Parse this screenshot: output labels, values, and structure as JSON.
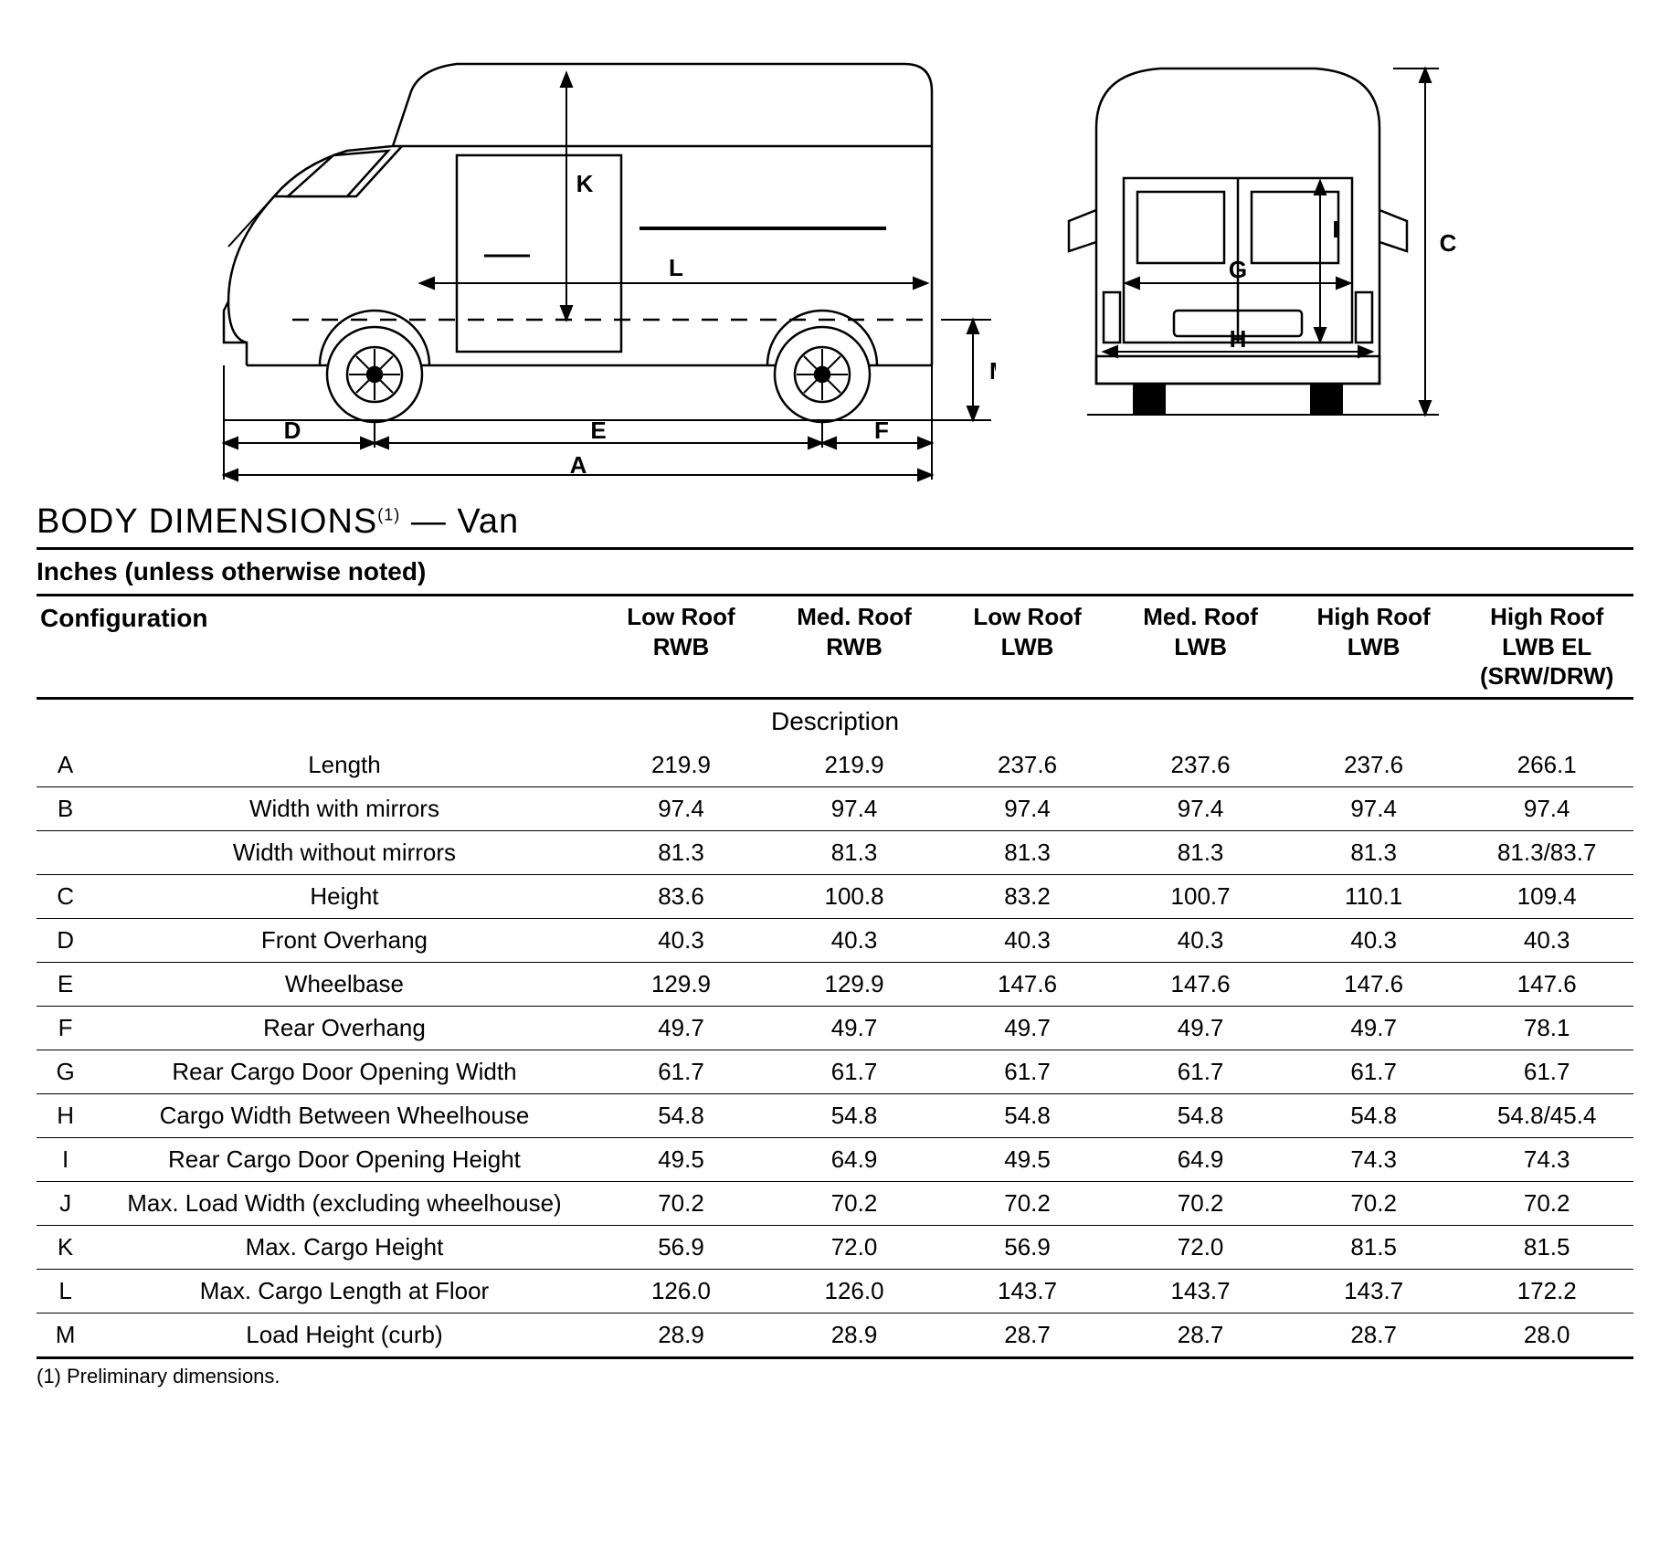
{
  "title": {
    "main": "BODY DIMENSIONS",
    "sup": "(1)",
    "tail": " — Van"
  },
  "subtitle": "Inches (unless otherwise noted)",
  "header": {
    "config": "Configuration",
    "cols": [
      "Low Roof\nRWB",
      "Med. Roof\nRWB",
      "Low Roof\nLWB",
      "Med. Roof\nLWB",
      "High Roof\nLWB",
      "High Roof\nLWB EL\n(SRW/DRW)"
    ],
    "description": "Description"
  },
  "rows": [
    {
      "key": "A",
      "label": "Length",
      "vals": [
        "219.9",
        "219.9",
        "237.6",
        "237.6",
        "237.6",
        "266.1"
      ]
    },
    {
      "key": "B",
      "label": "Width with mirrors",
      "vals": [
        "97.4",
        "97.4",
        "97.4",
        "97.4",
        "97.4",
        "97.4"
      ]
    },
    {
      "key": "",
      "label": "Width without mirrors",
      "vals": [
        "81.3",
        "81.3",
        "81.3",
        "81.3",
        "81.3",
        "81.3/83.7"
      ]
    },
    {
      "key": "C",
      "label": "Height",
      "vals": [
        "83.6",
        "100.8",
        "83.2",
        "100.7",
        "110.1",
        "109.4"
      ]
    },
    {
      "key": "D",
      "label": "Front Overhang",
      "vals": [
        "40.3",
        "40.3",
        "40.3",
        "40.3",
        "40.3",
        "40.3"
      ]
    },
    {
      "key": "E",
      "label": "Wheelbase",
      "vals": [
        "129.9",
        "129.9",
        "147.6",
        "147.6",
        "147.6",
        "147.6"
      ]
    },
    {
      "key": "F",
      "label": "Rear Overhang",
      "vals": [
        "49.7",
        "49.7",
        "49.7",
        "49.7",
        "49.7",
        "78.1"
      ]
    },
    {
      "key": "G",
      "label": "Rear Cargo Door Opening Width",
      "vals": [
        "61.7",
        "61.7",
        "61.7",
        "61.7",
        "61.7",
        "61.7"
      ]
    },
    {
      "key": "H",
      "label": "Cargo Width Between Wheelhouse",
      "vals": [
        "54.8",
        "54.8",
        "54.8",
        "54.8",
        "54.8",
        "54.8/45.4"
      ]
    },
    {
      "key": "I",
      "label": "Rear Cargo Door Opening Height",
      "vals": [
        "49.5",
        "64.9",
        "49.5",
        "64.9",
        "74.3",
        "74.3"
      ]
    },
    {
      "key": "J",
      "label": "Max. Load Width (excluding wheelhouse)",
      "vals": [
        "70.2",
        "70.2",
        "70.2",
        "70.2",
        "70.2",
        "70.2"
      ]
    },
    {
      "key": "K",
      "label": "Max. Cargo Height",
      "vals": [
        "56.9",
        "72.0",
        "56.9",
        "72.0",
        "81.5",
        "81.5"
      ]
    },
    {
      "key": "L",
      "label": "Max. Cargo Length at Floor",
      "vals": [
        "126.0",
        "126.0",
        "143.7",
        "143.7",
        "143.7",
        "172.2"
      ]
    },
    {
      "key": "M",
      "label": "Load Height (curb)",
      "vals": [
        "28.9",
        "28.9",
        "28.7",
        "28.7",
        "28.7",
        "28.0"
      ]
    }
  ],
  "footnote": "(1)  Preliminary dimensions.",
  "diagram": {
    "stroke": "#000000",
    "stroke_width": 2,
    "font_size": 26,
    "side_labels": {
      "A": "A",
      "D": "D",
      "E": "E",
      "F": "F",
      "K": "K",
      "L": "L",
      "M": "M"
    },
    "rear_labels": {
      "C": "C",
      "G": "G",
      "H": "H",
      "I": "I"
    }
  }
}
